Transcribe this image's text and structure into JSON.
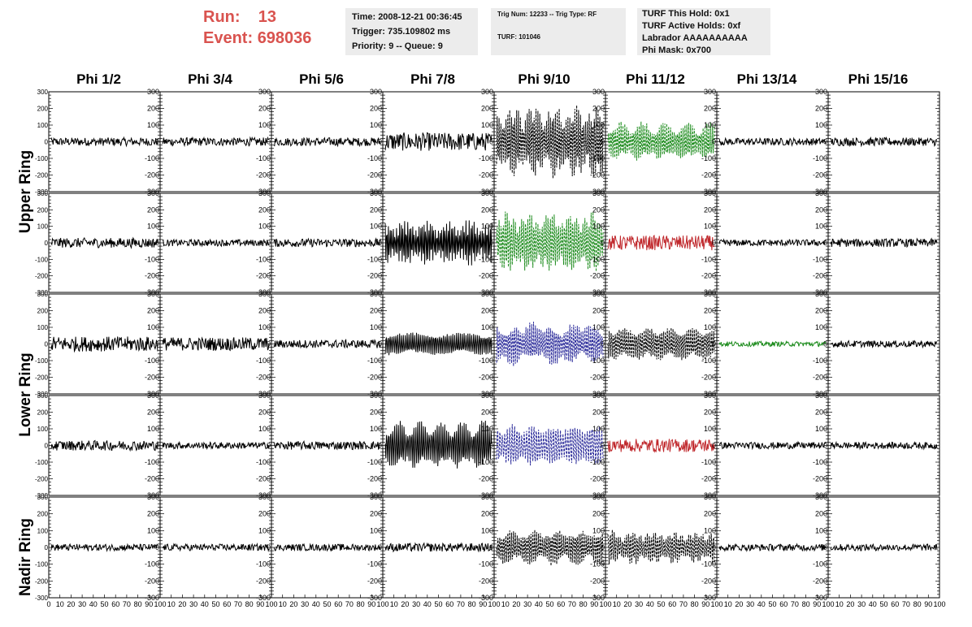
{
  "header": {
    "run_label": "Run:",
    "run_value": "13",
    "event_label": "Event:",
    "event_value": "698036"
  },
  "info_panels": {
    "timing": [
      "Time: 2008-12-21 00:36:45",
      "Trigger: 735.109802 ms",
      "Priority: 9 -- Queue: 9"
    ],
    "trigger": [
      "Trig Num: 12233 -- Trig Type: RF",
      "TURF: 101046"
    ],
    "turf": [
      "TURF This Hold: 0x1",
      "TURF Active Holds: 0xf",
      "Labrador AAAAAAAAAA",
      "Phi Mask: 0x700"
    ]
  },
  "chart_data": {
    "type": "line",
    "columns": [
      "Phi 1/2",
      "Phi 3/4",
      "Phi 5/6",
      "Phi 7/8",
      "Phi 9/10",
      "Phi 11/12",
      "Phi 13/14",
      "Phi 15/16"
    ],
    "rings": [
      {
        "label": "Upper Ring",
        "rows": [
          0,
          1
        ]
      },
      {
        "label": "Lower Ring",
        "rows": [
          2,
          3
        ]
      },
      {
        "label": "Nadir Ring",
        "rows": [
          4
        ]
      }
    ],
    "y_ticks": [
      -300,
      -200,
      -100,
      0,
      100,
      200,
      300
    ],
    "x_ticks": [
      "0",
      "10",
      "20",
      "30",
      "40",
      "50",
      "60",
      "70",
      "80",
      "90",
      "100"
    ],
    "xlim": [
      0,
      100
    ],
    "ylim": [
      -300,
      300
    ],
    "colors": {
      "normal": "#000000",
      "green": "#1a8a1a",
      "blue": "#2b2b9a",
      "red": "#c0282c"
    },
    "panels": [
      [
        {
          "amp": 25,
          "color": "normal",
          "style": "solid"
        },
        {
          "amp": 25,
          "color": "normal",
          "style": "solid"
        },
        {
          "amp": 25,
          "color": "normal",
          "style": "solid"
        },
        {
          "amp": 55,
          "color": "normal",
          "style": "solid"
        },
        {
          "amp": 240,
          "color": "normal",
          "style": "dashed"
        },
        {
          "amp": 130,
          "color": "green",
          "style": "dashed"
        },
        {
          "amp": 22,
          "color": "normal",
          "style": "solid"
        },
        {
          "amp": 25,
          "color": "normal",
          "style": "solid"
        }
      ],
      [
        {
          "amp": 30,
          "color": "normal",
          "style": "solid"
        },
        {
          "amp": 20,
          "color": "normal",
          "style": "solid"
        },
        {
          "amp": 25,
          "color": "normal",
          "style": "solid"
        },
        {
          "amp": 150,
          "color": "normal",
          "style": "solid"
        },
        {
          "amp": 200,
          "color": "green",
          "style": "dashed"
        },
        {
          "amp": 45,
          "color": "red",
          "style": "solid"
        },
        {
          "amp": 20,
          "color": "normal",
          "style": "solid"
        },
        {
          "amp": 25,
          "color": "normal",
          "style": "solid"
        }
      ],
      [
        {
          "amp": 45,
          "color": "normal",
          "style": "solid"
        },
        {
          "amp": 40,
          "color": "normal",
          "style": "solid"
        },
        {
          "amp": 25,
          "color": "normal",
          "style": "solid"
        },
        {
          "amp": 70,
          "color": "normal",
          "style": "solid"
        },
        {
          "amp": 140,
          "color": "blue",
          "style": "dashed"
        },
        {
          "amp": 100,
          "color": "normal",
          "style": "dashed"
        },
        {
          "amp": 15,
          "color": "green",
          "style": "solid"
        },
        {
          "amp": 20,
          "color": "normal",
          "style": "solid"
        }
      ],
      [
        {
          "amp": 30,
          "color": "normal",
          "style": "solid"
        },
        {
          "amp": 20,
          "color": "normal",
          "style": "solid"
        },
        {
          "amp": 25,
          "color": "normal",
          "style": "solid"
        },
        {
          "amp": 160,
          "color": "normal",
          "style": "solid"
        },
        {
          "amp": 140,
          "color": "blue",
          "style": "dashed"
        },
        {
          "amp": 40,
          "color": "red",
          "style": "solid"
        },
        {
          "amp": 20,
          "color": "normal",
          "style": "solid"
        },
        {
          "amp": 20,
          "color": "normal",
          "style": "solid"
        }
      ],
      [
        {
          "amp": 20,
          "color": "normal",
          "style": "solid"
        },
        {
          "amp": 20,
          "color": "normal",
          "style": "solid"
        },
        {
          "amp": 20,
          "color": "normal",
          "style": "solid"
        },
        {
          "amp": 25,
          "color": "normal",
          "style": "solid"
        },
        {
          "amp": 120,
          "color": "normal",
          "style": "dashed"
        },
        {
          "amp": 110,
          "color": "normal",
          "style": "dashed"
        },
        {
          "amp": 20,
          "color": "normal",
          "style": "solid"
        },
        {
          "amp": 20,
          "color": "normal",
          "style": "solid"
        }
      ]
    ]
  }
}
